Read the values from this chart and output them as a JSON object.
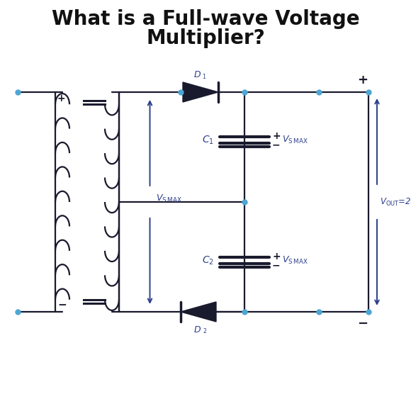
{
  "title_line1": "What is a Full-wave Voltage",
  "title_line2": "Multiplier?",
  "title_fontsize": 20,
  "title_color": "#111111",
  "line_color": "#1a1a2e",
  "blue_dot_color": "#4da6d4",
  "diode_color": "#1a1a2e",
  "label_color": "#2c3e8c",
  "arrow_color": "#2c3e8c",
  "background": "#ffffff",
  "lw": 1.6
}
